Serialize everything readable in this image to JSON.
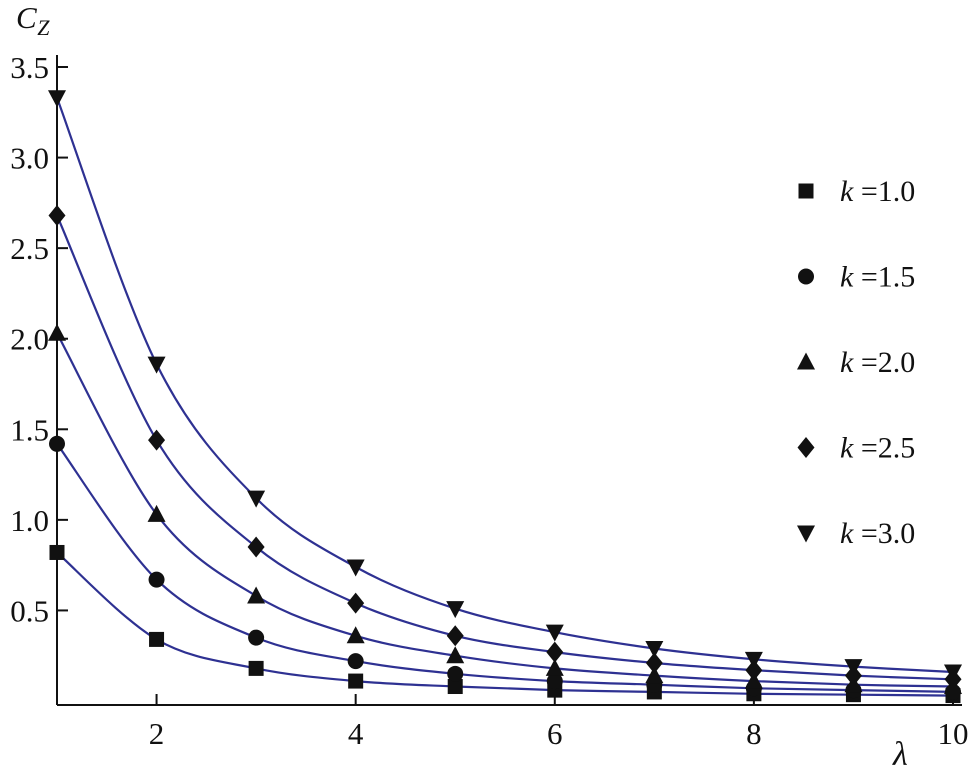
{
  "figure": {
    "background": "#ffffff",
    "axis_color": "#111111",
    "text_color": "#111111"
  },
  "labels": {
    "y_main": "C",
    "y_sub": "Z",
    "x": "λ"
  },
  "chart_data": {
    "type": "line",
    "title": "",
    "xlabel": "λ",
    "ylabel": "C_Z",
    "xlim": [
      1,
      10
    ],
    "ylim": [
      0,
      3.5
    ],
    "grid": false,
    "legend_position": "right-inside",
    "line_color": "#2e3192",
    "marker_color": "#111111",
    "x_ticks": [
      2,
      4,
      6,
      8,
      10
    ],
    "x_tick_labels": [
      "2",
      "4",
      "6",
      "8",
      "10"
    ],
    "y_ticks": [
      0.5,
      1.0,
      1.5,
      2.0,
      2.5,
      3.0,
      3.5
    ],
    "y_tick_labels": [
      "0.5",
      "1.0",
      "1.5",
      "2.0",
      "2.5",
      "3.0",
      "3.5"
    ],
    "x": [
      1,
      2,
      3,
      4,
      5,
      6,
      7,
      8,
      9,
      10
    ],
    "series": [
      {
        "name": "k =1.0",
        "marker": "square",
        "values": [
          0.82,
          0.34,
          0.18,
          0.11,
          0.08,
          0.06,
          0.05,
          0.04,
          0.035,
          0.03
        ]
      },
      {
        "name": "k =1.5",
        "marker": "circle",
        "values": [
          1.42,
          0.67,
          0.35,
          0.22,
          0.15,
          0.11,
          0.09,
          0.07,
          0.06,
          0.05
        ]
      },
      {
        "name": "k =2.0",
        "marker": "triangle-up",
        "values": [
          2.03,
          1.03,
          0.58,
          0.36,
          0.25,
          0.18,
          0.14,
          0.11,
          0.09,
          0.08
        ]
      },
      {
        "name": "k =2.5",
        "marker": "diamond",
        "values": [
          2.68,
          1.44,
          0.85,
          0.54,
          0.36,
          0.27,
          0.21,
          0.17,
          0.14,
          0.12
        ]
      },
      {
        "name": "k =3.0",
        "marker": "triangle-down",
        "values": [
          3.33,
          1.86,
          1.12,
          0.74,
          0.51,
          0.38,
          0.29,
          0.23,
          0.19,
          0.16
        ]
      }
    ]
  }
}
